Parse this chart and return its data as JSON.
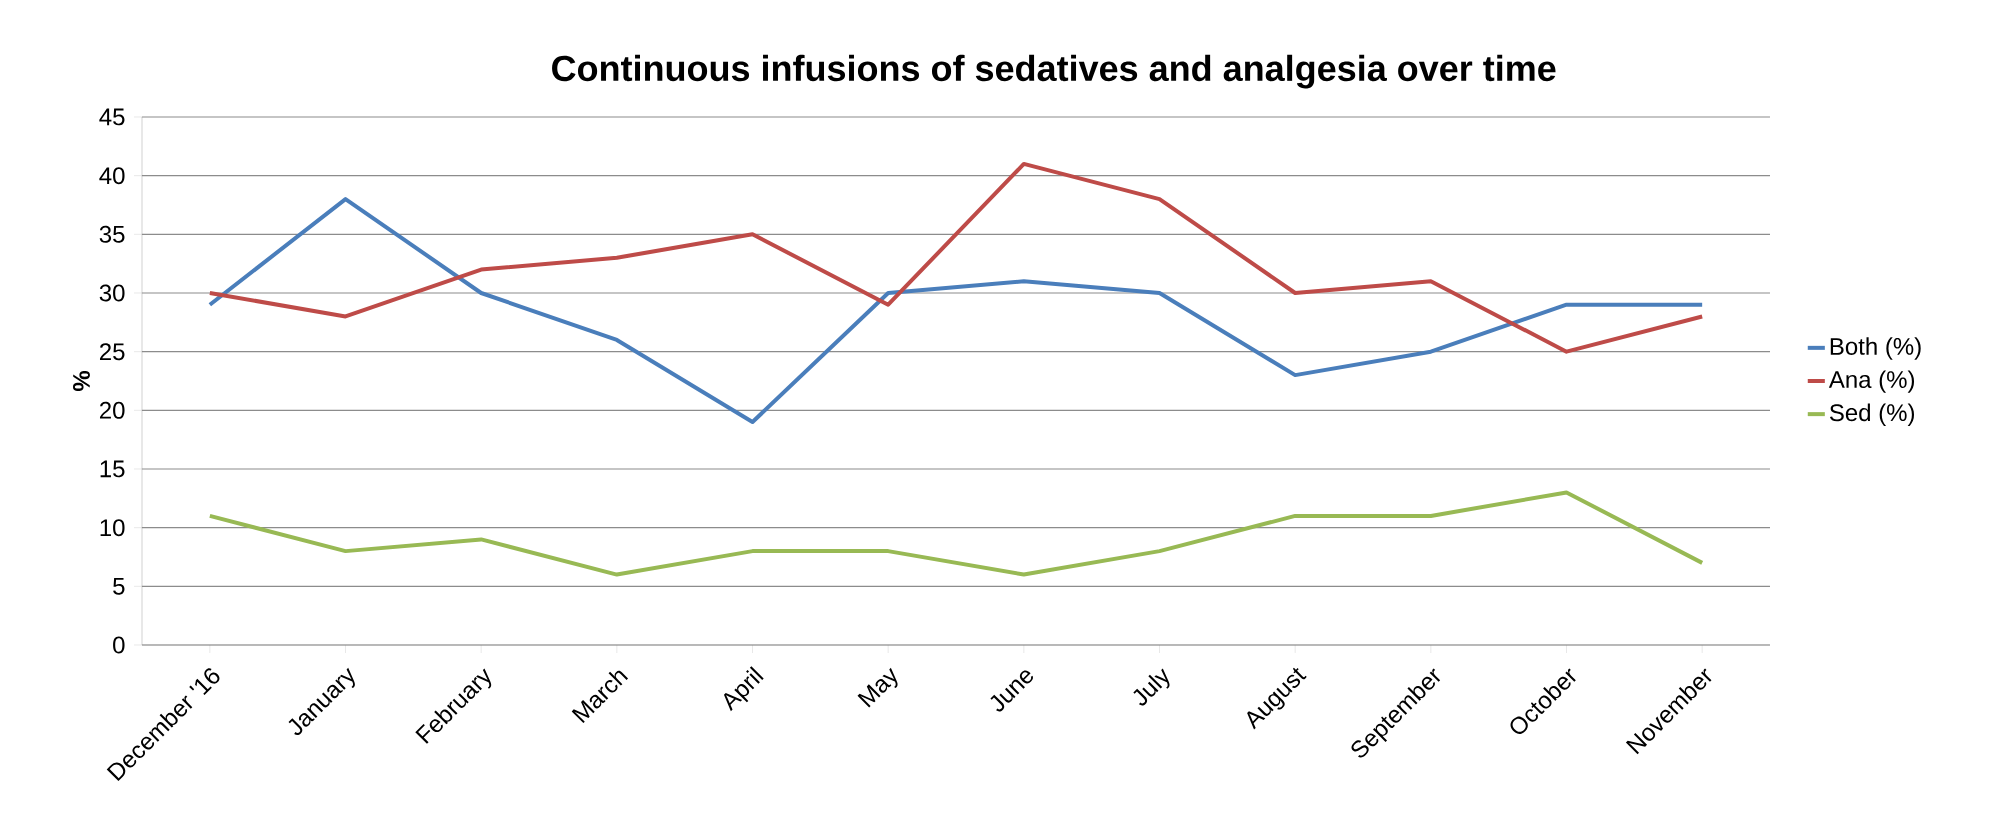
{
  "chart_data": {
    "type": "line",
    "title": "Continuous infusions of sedatives and analgesia over time",
    "ylabel": "%",
    "categories": [
      "December '16",
      "January",
      "February",
      "March",
      "April",
      "May",
      "June",
      "July",
      "August",
      "September",
      "October",
      "November"
    ],
    "series": [
      {
        "name": "Both (%)",
        "color": "#4a7ebb",
        "values": [
          29,
          38,
          30,
          26,
          19,
          30,
          31,
          30,
          23,
          25,
          29,
          29
        ]
      },
      {
        "name": "Ana (%)",
        "color": "#be4b48",
        "values": [
          30,
          28,
          32,
          33,
          35,
          29,
          41,
          38,
          30,
          31,
          25,
          28
        ]
      },
      {
        "name": "Sed (%)",
        "color": "#98b954",
        "values": [
          11,
          8,
          9,
          6,
          8,
          8,
          6,
          8,
          11,
          11,
          13,
          7
        ]
      }
    ],
    "ylim": [
      0,
      45
    ],
    "yticks": [
      0,
      5,
      10,
      15,
      20,
      25,
      30,
      35,
      40,
      45
    ],
    "grid": "y",
    "legend": "right"
  }
}
